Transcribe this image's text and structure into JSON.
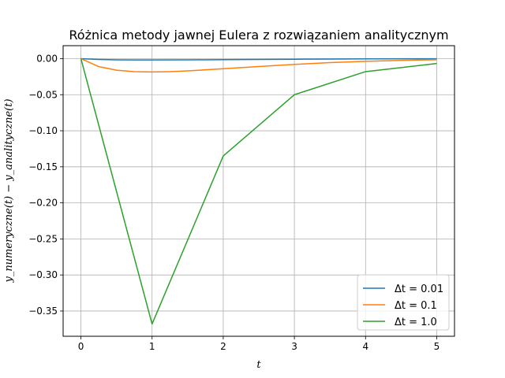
{
  "chart_data": {
    "type": "line",
    "title": "Różnica metody jawnej Eulera z rozwiązaniem analitycznym",
    "xlabel": "t",
    "ylabel": "y_numeryczne(t) − y_analityczne(t)",
    "xlim": [
      -0.25,
      5.25
    ],
    "ylim": [
      -0.385,
      0.018
    ],
    "x_ticks": [
      0,
      1,
      2,
      3,
      4,
      5
    ],
    "y_ticks": [
      0.0,
      -0.05,
      -0.1,
      -0.15,
      -0.2,
      -0.25,
      -0.3,
      -0.35
    ],
    "x_tick_labels": [
      "0",
      "1",
      "2",
      "3",
      "4",
      "5"
    ],
    "y_tick_labels": [
      "0.00",
      "−0.05",
      "−0.10",
      "−0.15",
      "−0.20",
      "−0.25",
      "−0.30",
      "−0.35"
    ],
    "grid": true,
    "legend_position": "lower-right",
    "series": [
      {
        "name": "Δt = 0.01",
        "color": "#1f77b4",
        "x": [
          0,
          0.25,
          0.5,
          0.75,
          1,
          1.5,
          2,
          2.5,
          3,
          3.5,
          4,
          4.5,
          5
        ],
        "y": [
          0,
          -0.0011,
          -0.0016,
          -0.0018,
          -0.0018,
          -0.0017,
          -0.0014,
          -0.0011,
          -0.0008,
          -0.0005,
          -0.0003,
          -0.0002,
          -0.0001
        ]
      },
      {
        "name": "Δt = 0.1",
        "color": "#ff7f0e",
        "x": [
          0,
          0.25,
          0.5,
          0.75,
          1,
          1.25,
          1.5,
          2,
          2.5,
          3,
          3.5,
          4,
          4.5,
          5
        ],
        "y": [
          0,
          -0.011,
          -0.016,
          -0.018,
          -0.0185,
          -0.018,
          -0.017,
          -0.014,
          -0.011,
          -0.008,
          -0.0055,
          -0.0037,
          -0.0024,
          -0.0015
        ]
      },
      {
        "name": "Δt = 1.0",
        "color": "#2ca02c",
        "x": [
          0,
          1,
          2,
          3,
          4,
          5
        ],
        "y": [
          0,
          -0.368,
          -0.135,
          -0.05,
          -0.018,
          -0.0067
        ]
      }
    ]
  }
}
